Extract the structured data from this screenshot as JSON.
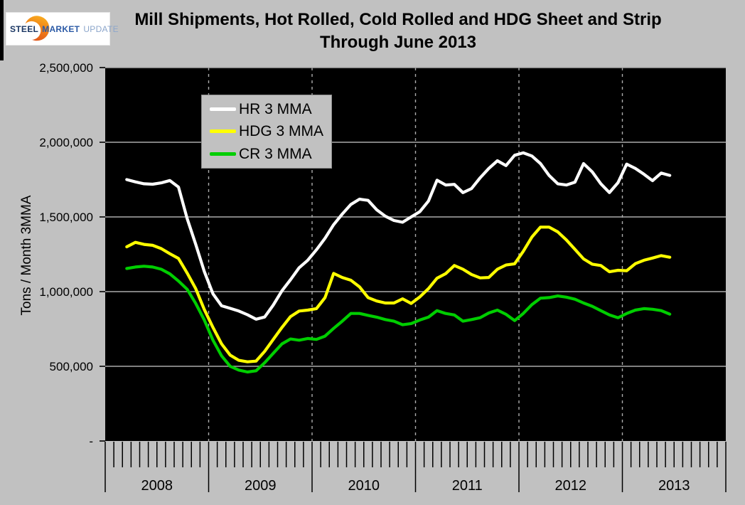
{
  "logo": {
    "steel": "STEEL",
    "market": "MARKET",
    "update": "UPDATE"
  },
  "title": {
    "line1": "Mill Shipments, Hot Rolled, Cold Rolled and HDG Sheet and Strip",
    "line2": "Through June 2013"
  },
  "y_axis": {
    "title": "Tons / Month 3MMA",
    "tick_labels": [
      "2,500,000",
      "2,000,000",
      "1,500,000",
      "1,000,000",
      "500,000",
      "-"
    ],
    "tick_values": [
      2500000,
      2000000,
      1500000,
      1000000,
      500000,
      0
    ]
  },
  "x_axis": {
    "year_labels": [
      "2008",
      "2009",
      "2010",
      "2011",
      "2012",
      "2013"
    ]
  },
  "legend": [
    {
      "label": "HR 3 MMA",
      "color": "#ffffff"
    },
    {
      "label": "HDG 3 MMA",
      "color": "#ffff00"
    },
    {
      "label": "CR 3 MMA",
      "color": "#00ce00"
    }
  ],
  "chart_data": {
    "type": "line",
    "title": "Mill Shipments, Hot Rolled, Cold Rolled and HDG Sheet and Strip Through June 2013",
    "ylabel": "Tons / Month 3MMA",
    "ylim": [
      0,
      2500000
    ],
    "x_range": {
      "start": "2008-01",
      "end": "2013-12"
    },
    "data_start_month": "2008-03",
    "data_end_month": "2013-06",
    "points_per_series": 64,
    "plot_bg": "#000000",
    "grid_color": "#ababab",
    "grid": {
      "horizontal": "solid",
      "vertical": "dashed-at-year-boundaries"
    },
    "legend_position": "top-left-inside",
    "series": [
      {
        "name": "HR 3 MMA",
        "color": "#ffffff",
        "values": [
          1750000,
          1735000,
          1722000,
          1719000,
          1728000,
          1744000,
          1700000,
          1490000,
          1317000,
          1135000,
          985000,
          905000,
          888000,
          870000,
          845000,
          815000,
          830000,
          910000,
          1005000,
          1080000,
          1160000,
          1210000,
          1280000,
          1357000,
          1448000,
          1519000,
          1584000,
          1619000,
          1611000,
          1548000,
          1505000,
          1476000,
          1465000,
          1500000,
          1535000,
          1606000,
          1746000,
          1714000,
          1718000,
          1663000,
          1690000,
          1762000,
          1825000,
          1876000,
          1844000,
          1913000,
          1929000,
          1908000,
          1857000,
          1778000,
          1722000,
          1714000,
          1733000,
          1857000,
          1802000,
          1722000,
          1663000,
          1730000,
          1854000,
          1825000,
          1786000,
          1743000,
          1794000,
          1778000
        ]
      },
      {
        "name": "HDG 3 MMA",
        "color": "#ffff00",
        "values": [
          1300000,
          1330000,
          1316000,
          1310000,
          1288000,
          1254000,
          1222000,
          1125000,
          1020000,
          880000,
          760000,
          650000,
          575000,
          540000,
          530000,
          535000,
          600000,
          680000,
          760000,
          833000,
          870000,
          876000,
          886000,
          960000,
          1122000,
          1095000,
          1076000,
          1032000,
          960000,
          937000,
          924000,
          924000,
          952000,
          921000,
          965000,
          1020000,
          1090000,
          1120000,
          1175000,
          1150000,
          1115000,
          1092000,
          1095000,
          1150000,
          1178000,
          1186000,
          1270000,
          1365000,
          1432000,
          1432000,
          1400000,
          1346000,
          1283000,
          1219000,
          1184000,
          1175000,
          1133000,
          1143000,
          1140000,
          1187000,
          1210000,
          1225000,
          1241000,
          1230000
        ]
      },
      {
        "name": "CR 3 MMA",
        "color": "#00ce00",
        "values": [
          1155000,
          1165000,
          1170000,
          1165000,
          1150000,
          1119000,
          1071000,
          1016000,
          921000,
          810000,
          675000,
          570000,
          500000,
          475000,
          462000,
          470000,
          524000,
          587000,
          650000,
          683000,
          675000,
          686000,
          680000,
          702000,
          754000,
          802000,
          854000,
          854000,
          841000,
          829000,
          813000,
          802000,
          778000,
          786000,
          810000,
          829000,
          873000,
          854000,
          844000,
          802000,
          813000,
          825000,
          857000,
          876000,
          848000,
          806000,
          854000,
          913000,
          956000,
          960000,
          971000,
          963000,
          949000,
          924000,
          902000,
          873000,
          844000,
          825000,
          854000,
          876000,
          886000,
          882000,
          873000,
          849000
        ]
      }
    ]
  }
}
